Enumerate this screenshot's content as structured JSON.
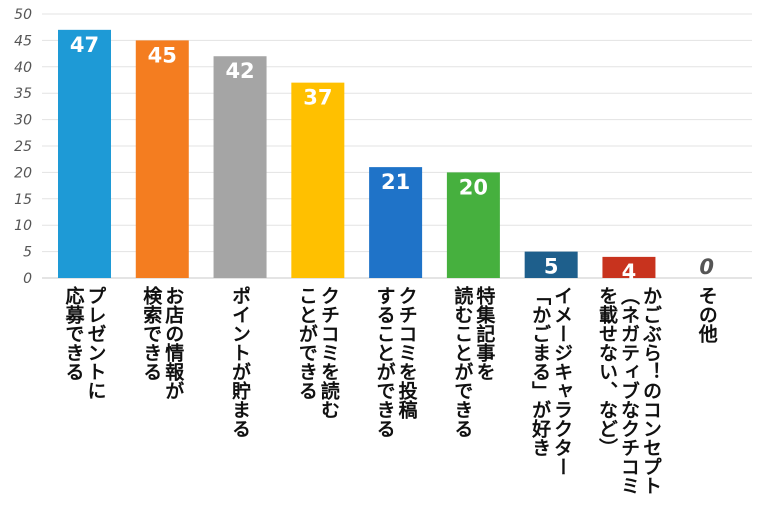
{
  "chart_data": {
    "type": "bar",
    "categories": [
      "プレゼントに\n応募できる",
      "お店の情報が\n検索できる",
      "ポイントが貯まる",
      "クチコミを読む\nことができる",
      "クチコミを投稿\nすることができる",
      "特集記事を\n読むことができる",
      "イメージキャラクター\n「かごまる」が好き",
      "かごぶら！のコンセプト\n（ネガティブなクチコミ\nを載せない、など）",
      "その他"
    ],
    "values": [
      47,
      45,
      42,
      37,
      21,
      20,
      5,
      4,
      0
    ],
    "colors": [
      "#1e9ad6",
      "#f47d20",
      "#a5a5a5",
      "#ffc000",
      "#1f73c8",
      "#46b03e",
      "#1e5f8c",
      "#c8331e",
      "#999999"
    ],
    "ylim": [
      0,
      50
    ],
    "yticks": [
      "0",
      "5",
      "10",
      "15",
      "20",
      "25",
      "30",
      "35",
      "40",
      "45",
      "50"
    ],
    "grid": true,
    "title": "",
    "xlabel": "",
    "ylabel": ""
  }
}
